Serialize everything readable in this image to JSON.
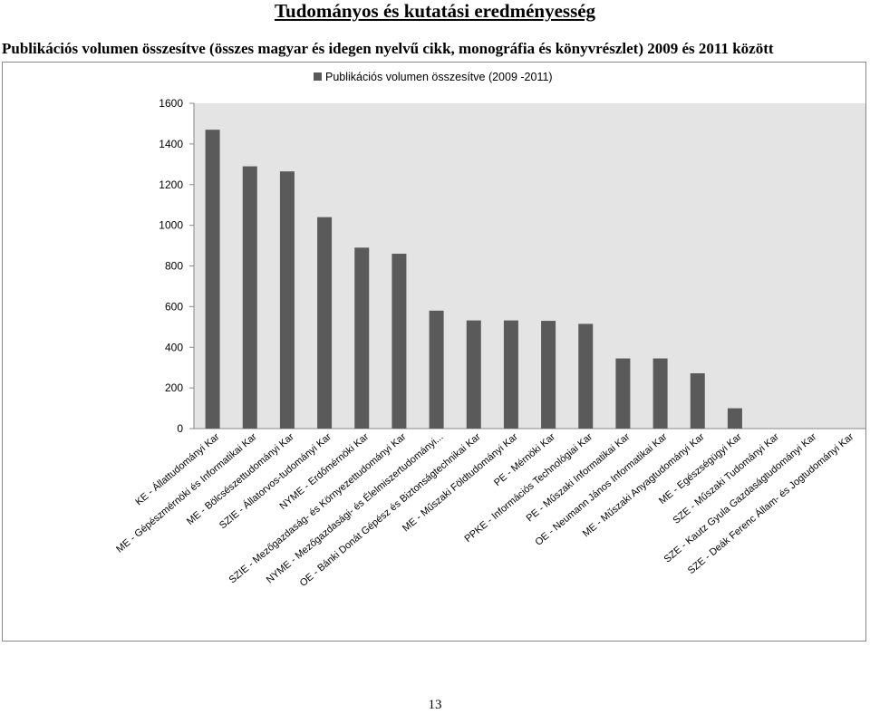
{
  "page": {
    "heading": "Tudományos és kutatási eredményesség",
    "subheading": "Publikációs volumen összesítve (összes magyar és idegen nyelvű cikk, monográfia és könyvrészlet) 2009 és 2011 között",
    "page_number": "13"
  },
  "chart_data": {
    "type": "bar",
    "title": "",
    "xlabel": "",
    "ylabel": "",
    "ylim": [
      0,
      1600
    ],
    "yticks": [
      0,
      200,
      400,
      600,
      800,
      1000,
      1200,
      1400,
      1600
    ],
    "grid": false,
    "legend_position": "top",
    "plot_background": "#e4e4e4",
    "bar_color": "#5a5a5a",
    "categories": [
      "KE - Állattudományi Kar",
      "ME - Gépészmérnöki és Informatikai Kar",
      "ME - Bölcsészettudományi Kar",
      "SZIE - Állatorvos-tudományi Kar",
      "NYME - Erdőmérnöki Kar",
      "SZIE - Mezőgazdaság- és Környezettudományi Kar",
      "NYME - Mezőgazdasági- és Élelmiszertudományi...",
      "OE - Bánki Donát Gépész és Biztonságtechnikai Kar",
      "ME - Műszaki Földtudományi Kar",
      "PE - Mérnöki Kar",
      "PPKE - Információs Technológiai Kar",
      "PE - Műszaki Informatikai Kar",
      "OE - Neumann János Informatikai Kar",
      "ME - Műszaki Anyagtudományi Kar",
      "ME - Egészségügyi Kar",
      "SZE - Műszaki Tudományi Kar",
      "SZE - Kautz Gyula Gazdaságtudományi Kar",
      "SZE - Deák Ferenc Állam- és Jogtudományi Kar"
    ],
    "series": [
      {
        "name": "Publikációs volumen összesítve (2009 -2011)",
        "values": [
          1470,
          1290,
          1265,
          1040,
          890,
          860,
          580,
          532,
          532,
          530,
          515,
          345,
          345,
          272,
          100,
          0,
          0,
          0
        ]
      }
    ]
  }
}
